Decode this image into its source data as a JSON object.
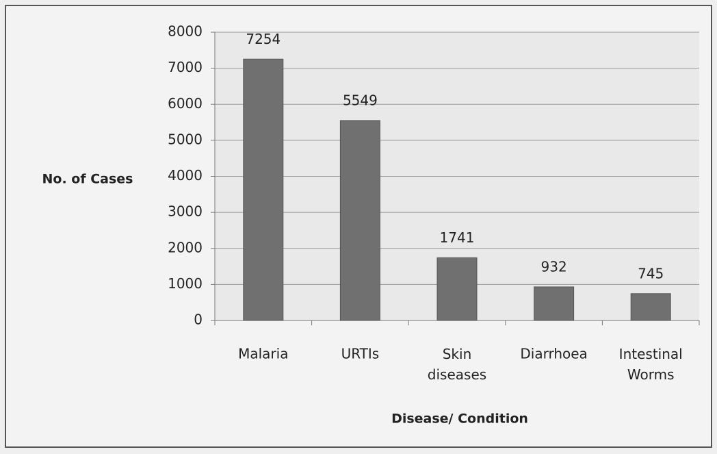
{
  "chart_data": {
    "type": "bar",
    "x_label": "Disease/ Condition",
    "y_label": "No. of Cases",
    "categories": [
      "Malaria",
      "URTIs",
      "Skin diseases",
      "Diarrhoea",
      "Intestinal Worms"
    ],
    "values": [
      7254,
      5549,
      1741,
      932,
      745
    ],
    "color": "#707070",
    "ylim": [
      0,
      8000
    ],
    "yticks": [
      0,
      1000,
      2000,
      3000,
      4000,
      5000,
      6000,
      7000,
      8000
    ],
    "grid": true
  }
}
